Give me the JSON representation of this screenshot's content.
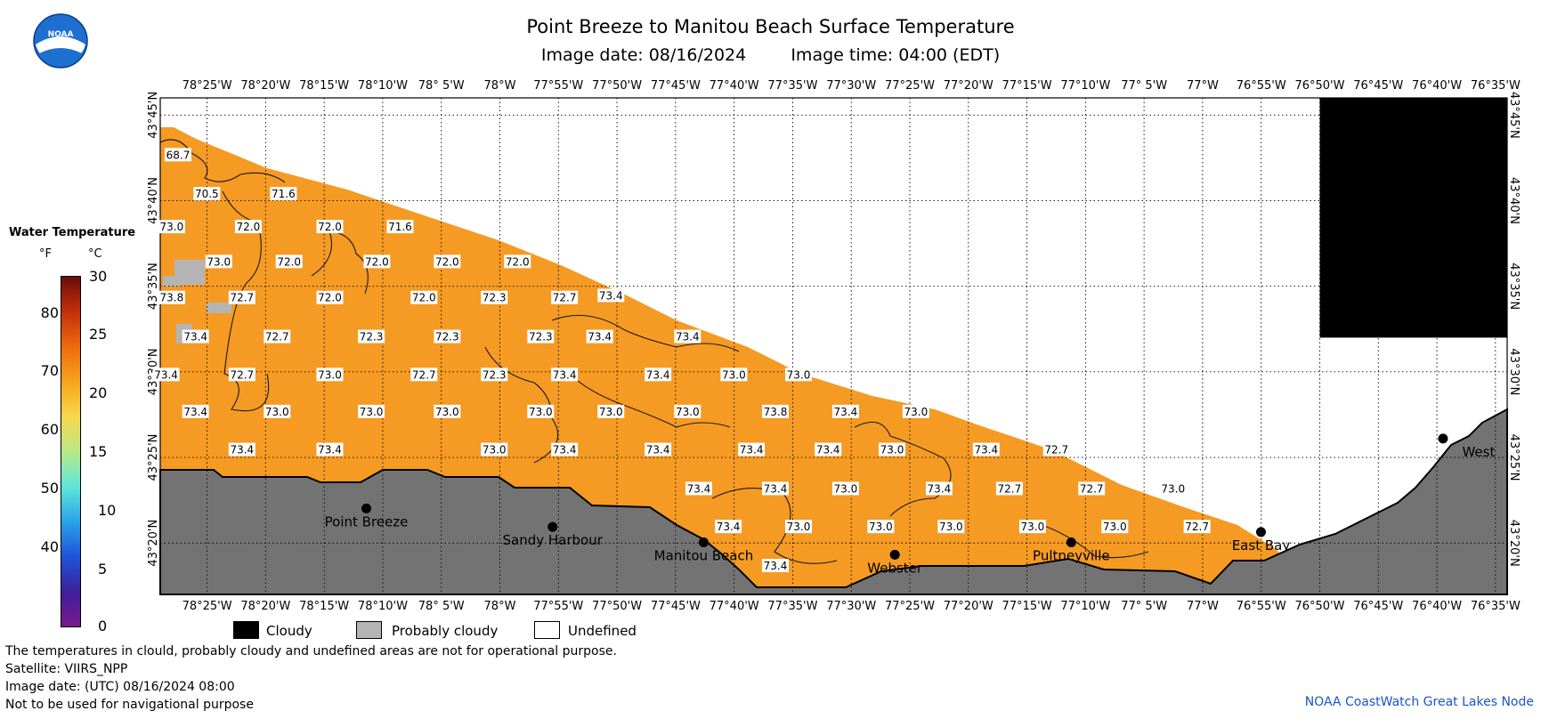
{
  "header": {
    "title": "Point Breeze to Manitou Beach Surface Temperature",
    "date_label": "Image date: 08/16/2024",
    "time_label": "Image time: 04:00 (EDT)"
  },
  "logo_icon": "noaa-logo-icon",
  "colorbar": {
    "title": "Water Temperature",
    "unit_f": "°F",
    "unit_c": "°C",
    "f_ticks": [
      "80",
      "70",
      "60",
      "50",
      "40"
    ],
    "c_ticks": [
      "30",
      "25",
      "20",
      "15",
      "10",
      "5",
      "0"
    ],
    "colors": [
      "#6a0d0d",
      "#c2300a",
      "#ee6a0d",
      "#f7a31f",
      "#f7d84a",
      "#b8e88a",
      "#5ee6d8",
      "#2aa3ea",
      "#1d55d8",
      "#3d1f9a",
      "#7a1a8e"
    ]
  },
  "map": {
    "lon_labels": [
      "78°25'W",
      "78°20'W",
      "78°15'W",
      "78°10'W",
      "78° 5'W",
      "78°W",
      "77°55'W",
      "77°50'W",
      "77°45'W",
      "77°40'W",
      "77°35'W",
      "77°30'W",
      "77°25'W",
      "77°20'W",
      "77°15'W",
      "77°10'W",
      "77° 5'W",
      "77°W",
      "76°55'W",
      "76°50'W",
      "76°45'W",
      "76°40'W",
      "76°35'W"
    ],
    "lat_labels": [
      "43°45'N",
      "43°40'N",
      "43°35'N",
      "43°30'N",
      "43°25'N",
      "43°20'N"
    ],
    "water_color": "#f59a23",
    "land_color": "#737373",
    "cloud_color": "#000000",
    "probably_cloudy_color": "#b4b4b4",
    "temperatures": [
      {
        "t": "68.7",
        "lon": -78.458,
        "lat": 43.711
      },
      {
        "t": "70.5",
        "lon": -78.417,
        "lat": 43.673
      },
      {
        "t": "71.6",
        "lon": -78.308,
        "lat": 43.673
      },
      {
        "t": "73.0",
        "lon": -78.467,
        "lat": 43.641
      },
      {
        "t": "72.0",
        "lon": -78.358,
        "lat": 43.641
      },
      {
        "t": "72.0",
        "lon": -78.242,
        "lat": 43.641
      },
      {
        "t": "71.6",
        "lon": -78.142,
        "lat": 43.641
      },
      {
        "t": "73.0",
        "lon": -78.4,
        "lat": 43.607
      },
      {
        "t": "72.0",
        "lon": -78.3,
        "lat": 43.607
      },
      {
        "t": "72.0",
        "lon": -78.175,
        "lat": 43.607
      },
      {
        "t": "72.0",
        "lon": -78.075,
        "lat": 43.607
      },
      {
        "t": "72.0",
        "lon": -77.975,
        "lat": 43.607
      },
      {
        "t": "73.8",
        "lon": -78.467,
        "lat": 43.572
      },
      {
        "t": "72.7",
        "lon": -78.367,
        "lat": 43.572
      },
      {
        "t": "72.0",
        "lon": -78.242,
        "lat": 43.572
      },
      {
        "t": "72.0",
        "lon": -78.108,
        "lat": 43.572
      },
      {
        "t": "72.3",
        "lon": -78.008,
        "lat": 43.572
      },
      {
        "t": "72.7",
        "lon": -77.908,
        "lat": 43.572
      },
      {
        "t": "73.4",
        "lon": -77.842,
        "lat": 43.574
      },
      {
        "t": "73.4",
        "lon": -78.433,
        "lat": 43.534
      },
      {
        "t": "72.7",
        "lon": -78.317,
        "lat": 43.534
      },
      {
        "t": "72.3",
        "lon": -78.183,
        "lat": 43.534
      },
      {
        "t": "72.3",
        "lon": -78.075,
        "lat": 43.534
      },
      {
        "t": "72.3",
        "lon": -77.942,
        "lat": 43.534
      },
      {
        "t": "73.4",
        "lon": -77.858,
        "lat": 43.534
      },
      {
        "t": "73.4",
        "lon": -77.733,
        "lat": 43.534
      },
      {
        "t": "73.4",
        "lon": -78.475,
        "lat": 43.497
      },
      {
        "t": "72.7",
        "lon": -78.367,
        "lat": 43.497
      },
      {
        "t": "73.0",
        "lon": -78.242,
        "lat": 43.497
      },
      {
        "t": "72.7",
        "lon": -78.108,
        "lat": 43.497
      },
      {
        "t": "72.3",
        "lon": -78.008,
        "lat": 43.497
      },
      {
        "t": "73.4",
        "lon": -77.908,
        "lat": 43.497
      },
      {
        "t": "73.4",
        "lon": -77.775,
        "lat": 43.497
      },
      {
        "t": "73.0",
        "lon": -77.667,
        "lat": 43.497
      },
      {
        "t": "73.0",
        "lon": -77.575,
        "lat": 43.497
      },
      {
        "t": "73.4",
        "lon": -78.433,
        "lat": 43.461
      },
      {
        "t": "73.0",
        "lon": -78.317,
        "lat": 43.461
      },
      {
        "t": "73.0",
        "lon": -78.183,
        "lat": 43.461
      },
      {
        "t": "73.0",
        "lon": -78.075,
        "lat": 43.461
      },
      {
        "t": "73.0",
        "lon": -77.942,
        "lat": 43.461
      },
      {
        "t": "73.0",
        "lon": -77.842,
        "lat": 43.461
      },
      {
        "t": "73.0",
        "lon": -77.733,
        "lat": 43.461
      },
      {
        "t": "73.8",
        "lon": -77.608,
        "lat": 43.461
      },
      {
        "t": "73.4",
        "lon": -77.508,
        "lat": 43.461
      },
      {
        "t": "73.0",
        "lon": -77.408,
        "lat": 43.461
      },
      {
        "t": "73.4",
        "lon": -78.367,
        "lat": 43.424
      },
      {
        "t": "73.4",
        "lon": -78.242,
        "lat": 43.424
      },
      {
        "t": "73.0",
        "lon": -78.008,
        "lat": 43.424
      },
      {
        "t": "73.4",
        "lon": -77.908,
        "lat": 43.424
      },
      {
        "t": "73.4",
        "lon": -77.775,
        "lat": 43.424
      },
      {
        "t": "73.4",
        "lon": -77.642,
        "lat": 43.424
      },
      {
        "t": "73.4",
        "lon": -77.533,
        "lat": 43.424
      },
      {
        "t": "73.0",
        "lon": -77.442,
        "lat": 43.424
      },
      {
        "t": "73.4",
        "lon": -77.308,
        "lat": 43.424
      },
      {
        "t": "72.7",
        "lon": -77.208,
        "lat": 43.424
      },
      {
        "t": "73.4",
        "lon": -77.717,
        "lat": 43.386
      },
      {
        "t": "73.4",
        "lon": -77.608,
        "lat": 43.386
      },
      {
        "t": "73.0",
        "lon": -77.508,
        "lat": 43.386
      },
      {
        "t": "73.4",
        "lon": -77.375,
        "lat": 43.386
      },
      {
        "t": "72.7",
        "lon": -77.275,
        "lat": 43.386
      },
      {
        "t": "72.7",
        "lon": -77.158,
        "lat": 43.386
      },
      {
        "t": "73.0",
        "lon": -77.042,
        "lat": 43.386
      },
      {
        "t": "73.4",
        "lon": -77.675,
        "lat": 43.349
      },
      {
        "t": "73.0",
        "lon": -77.575,
        "lat": 43.349
      },
      {
        "t": "73.0",
        "lon": -77.458,
        "lat": 43.349
      },
      {
        "t": "73.0",
        "lon": -77.358,
        "lat": 43.349
      },
      {
        "t": "73.0",
        "lon": -77.242,
        "lat": 43.349
      },
      {
        "t": "73.0",
        "lon": -77.125,
        "lat": 43.349
      },
      {
        "t": "72.7",
        "lon": -77.008,
        "lat": 43.349
      },
      {
        "t": "73.4",
        "lon": -77.608,
        "lat": 43.311
      }
    ],
    "places": [
      {
        "name": "Point Breeze",
        "lon": -78.19,
        "lat": 43.367
      },
      {
        "name": "Sandy Harbour",
        "lon": -77.925,
        "lat": 43.349
      },
      {
        "name": "Manitou Beach",
        "lon": -77.71,
        "lat": 43.334
      },
      {
        "name": "Webster",
        "lon": -77.438,
        "lat": 43.322
      },
      {
        "name": "Pultneyville",
        "lon": -77.187,
        "lat": 43.334
      },
      {
        "name": "East Bay",
        "lon": -76.917,
        "lat": 43.344
      },
      {
        "name": "West",
        "lon": -76.658,
        "lat": 43.435
      }
    ]
  },
  "legend": {
    "cloudy": "Cloudy",
    "probably_cloudy": "Probably cloudy",
    "undefined": "Undefined"
  },
  "footer": {
    "note": "The temperatures in clould, probably cloudy and undefined areas are not for operational purpose.",
    "satellite": "Satellite: VIIRS_NPP",
    "utc_date": "Image date: (UTC) 08/16/2024  08:00",
    "nav_warning": "Not to be used for navigational purpose",
    "node": "NOAA CoastWatch Great Lakes Node"
  }
}
